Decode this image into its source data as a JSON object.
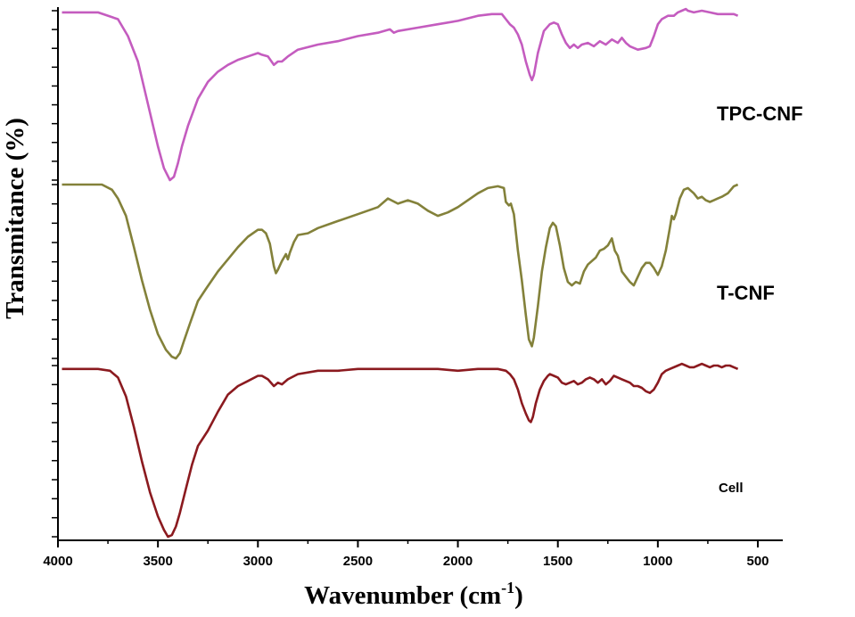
{
  "chart_data": {
    "type": "line",
    "title": "",
    "xlabel": "Wavenumber (cm",
    "xlabel_superscript": "-1",
    "xlabel_close": ")",
    "ylabel": "Transmitance (%)",
    "xlim": [
      4000,
      400
    ],
    "x_reversed": true,
    "xticks": [
      4000,
      3500,
      3000,
      2500,
      2000,
      1500,
      1000,
      500
    ],
    "grid": false,
    "series": [
      {
        "name": "TPC-CNF",
        "color": "#c45cbf",
        "panel": 0,
        "points": [
          [
            3980,
            0.01
          ],
          [
            3800,
            0.01
          ],
          [
            3700,
            0.05
          ],
          [
            3650,
            0.15
          ],
          [
            3600,
            0.3
          ],
          [
            3550,
            0.55
          ],
          [
            3500,
            0.8
          ],
          [
            3470,
            0.93
          ],
          [
            3440,
            1.0
          ],
          [
            3420,
            0.98
          ],
          [
            3400,
            0.9
          ],
          [
            3380,
            0.8
          ],
          [
            3350,
            0.68
          ],
          [
            3300,
            0.52
          ],
          [
            3250,
            0.42
          ],
          [
            3200,
            0.36
          ],
          [
            3150,
            0.32
          ],
          [
            3100,
            0.29
          ],
          [
            3050,
            0.27
          ],
          [
            3000,
            0.25
          ],
          [
            2980,
            0.26
          ],
          [
            2950,
            0.27
          ],
          [
            2920,
            0.32
          ],
          [
            2900,
            0.3
          ],
          [
            2880,
            0.3
          ],
          [
            2860,
            0.28
          ],
          [
            2850,
            0.27
          ],
          [
            2800,
            0.23
          ],
          [
            2700,
            0.2
          ],
          [
            2600,
            0.18
          ],
          [
            2500,
            0.15
          ],
          [
            2400,
            0.13
          ],
          [
            2340,
            0.11
          ],
          [
            2320,
            0.13
          ],
          [
            2300,
            0.12
          ],
          [
            2200,
            0.1
          ],
          [
            2100,
            0.08
          ],
          [
            2000,
            0.06
          ],
          [
            1900,
            0.03
          ],
          [
            1830,
            0.02
          ],
          [
            1780,
            0.02
          ],
          [
            1760,
            0.05
          ],
          [
            1740,
            0.08
          ],
          [
            1720,
            0.1
          ],
          [
            1700,
            0.14
          ],
          [
            1680,
            0.2
          ],
          [
            1660,
            0.3
          ],
          [
            1640,
            0.38
          ],
          [
            1630,
            0.41
          ],
          [
            1620,
            0.38
          ],
          [
            1600,
            0.25
          ],
          [
            1570,
            0.12
          ],
          [
            1540,
            0.08
          ],
          [
            1520,
            0.07
          ],
          [
            1500,
            0.08
          ],
          [
            1480,
            0.14
          ],
          [
            1460,
            0.19
          ],
          [
            1440,
            0.22
          ],
          [
            1420,
            0.2
          ],
          [
            1400,
            0.22
          ],
          [
            1380,
            0.2
          ],
          [
            1350,
            0.19
          ],
          [
            1320,
            0.21
          ],
          [
            1290,
            0.18
          ],
          [
            1260,
            0.2
          ],
          [
            1230,
            0.17
          ],
          [
            1200,
            0.19
          ],
          [
            1180,
            0.16
          ],
          [
            1160,
            0.19
          ],
          [
            1140,
            0.21
          ],
          [
            1120,
            0.22
          ],
          [
            1100,
            0.23
          ],
          [
            1060,
            0.22
          ],
          [
            1040,
            0.21
          ],
          [
            1020,
            0.15
          ],
          [
            1000,
            0.08
          ],
          [
            980,
            0.05
          ],
          [
            950,
            0.03
          ],
          [
            920,
            0.03
          ],
          [
            900,
            0.01
          ],
          [
            880,
            0.0
          ],
          [
            860,
            -0.01
          ],
          [
            850,
            0.0
          ],
          [
            820,
            0.01
          ],
          [
            780,
            0.0
          ],
          [
            740,
            0.01
          ],
          [
            700,
            0.02
          ],
          [
            660,
            0.02
          ],
          [
            620,
            0.02
          ],
          [
            600,
            0.03
          ]
        ]
      },
      {
        "name": "T-CNF",
        "color": "#83813a",
        "panel": 1,
        "points": [
          [
            3980,
            0.0
          ],
          [
            3780,
            0.0
          ],
          [
            3730,
            0.03
          ],
          [
            3700,
            0.08
          ],
          [
            3660,
            0.18
          ],
          [
            3620,
            0.36
          ],
          [
            3580,
            0.55
          ],
          [
            3540,
            0.72
          ],
          [
            3500,
            0.86
          ],
          [
            3460,
            0.95
          ],
          [
            3430,
            0.99
          ],
          [
            3410,
            1.0
          ],
          [
            3390,
            0.97
          ],
          [
            3370,
            0.9
          ],
          [
            3340,
            0.8
          ],
          [
            3300,
            0.67
          ],
          [
            3260,
            0.6
          ],
          [
            3200,
            0.5
          ],
          [
            3150,
            0.43
          ],
          [
            3100,
            0.36
          ],
          [
            3050,
            0.3
          ],
          [
            3000,
            0.26
          ],
          [
            2980,
            0.26
          ],
          [
            2960,
            0.28
          ],
          [
            2940,
            0.34
          ],
          [
            2920,
            0.47
          ],
          [
            2910,
            0.51
          ],
          [
            2900,
            0.49
          ],
          [
            2880,
            0.44
          ],
          [
            2860,
            0.4
          ],
          [
            2850,
            0.43
          ],
          [
            2840,
            0.39
          ],
          [
            2820,
            0.33
          ],
          [
            2800,
            0.29
          ],
          [
            2750,
            0.28
          ],
          [
            2700,
            0.25
          ],
          [
            2600,
            0.21
          ],
          [
            2500,
            0.17
          ],
          [
            2400,
            0.13
          ],
          [
            2350,
            0.08
          ],
          [
            2300,
            0.11
          ],
          [
            2250,
            0.09
          ],
          [
            2200,
            0.11
          ],
          [
            2150,
            0.15
          ],
          [
            2100,
            0.18
          ],
          [
            2050,
            0.16
          ],
          [
            2000,
            0.13
          ],
          [
            1950,
            0.09
          ],
          [
            1900,
            0.05
          ],
          [
            1850,
            0.02
          ],
          [
            1800,
            0.01
          ],
          [
            1770,
            0.02
          ],
          [
            1760,
            0.1
          ],
          [
            1745,
            0.12
          ],
          [
            1735,
            0.11
          ],
          [
            1720,
            0.17
          ],
          [
            1700,
            0.38
          ],
          [
            1680,
            0.55
          ],
          [
            1660,
            0.75
          ],
          [
            1645,
            0.89
          ],
          [
            1630,
            0.93
          ],
          [
            1620,
            0.88
          ],
          [
            1600,
            0.7
          ],
          [
            1580,
            0.5
          ],
          [
            1560,
            0.36
          ],
          [
            1540,
            0.25
          ],
          [
            1525,
            0.22
          ],
          [
            1510,
            0.24
          ],
          [
            1490,
            0.35
          ],
          [
            1470,
            0.48
          ],
          [
            1450,
            0.56
          ],
          [
            1430,
            0.58
          ],
          [
            1410,
            0.56
          ],
          [
            1390,
            0.57
          ],
          [
            1370,
            0.5
          ],
          [
            1350,
            0.46
          ],
          [
            1330,
            0.44
          ],
          [
            1310,
            0.42
          ],
          [
            1290,
            0.38
          ],
          [
            1270,
            0.37
          ],
          [
            1250,
            0.35
          ],
          [
            1230,
            0.31
          ],
          [
            1215,
            0.38
          ],
          [
            1200,
            0.41
          ],
          [
            1180,
            0.5
          ],
          [
            1160,
            0.53
          ],
          [
            1140,
            0.56
          ],
          [
            1120,
            0.58
          ],
          [
            1100,
            0.53
          ],
          [
            1080,
            0.48
          ],
          [
            1060,
            0.45
          ],
          [
            1040,
            0.45
          ],
          [
            1020,
            0.48
          ],
          [
            1000,
            0.52
          ],
          [
            980,
            0.47
          ],
          [
            960,
            0.38
          ],
          [
            940,
            0.25
          ],
          [
            930,
            0.18
          ],
          [
            920,
            0.2
          ],
          [
            910,
            0.17
          ],
          [
            890,
            0.08
          ],
          [
            870,
            0.03
          ],
          [
            850,
            0.02
          ],
          [
            820,
            0.05
          ],
          [
            800,
            0.08
          ],
          [
            780,
            0.07
          ],
          [
            760,
            0.09
          ],
          [
            740,
            0.1
          ],
          [
            720,
            0.09
          ],
          [
            700,
            0.08
          ],
          [
            680,
            0.07
          ],
          [
            650,
            0.05
          ],
          [
            620,
            0.01
          ],
          [
            600,
            0.0
          ]
        ]
      },
      {
        "name": "Cell",
        "color": "#8b1a1f",
        "panel": 2,
        "points": [
          [
            3980,
            0.02
          ],
          [
            3800,
            0.02
          ],
          [
            3740,
            0.03
          ],
          [
            3700,
            0.07
          ],
          [
            3660,
            0.18
          ],
          [
            3620,
            0.36
          ],
          [
            3580,
            0.56
          ],
          [
            3540,
            0.74
          ],
          [
            3500,
            0.88
          ],
          [
            3470,
            0.96
          ],
          [
            3450,
            1.0
          ],
          [
            3430,
            0.99
          ],
          [
            3410,
            0.94
          ],
          [
            3390,
            0.86
          ],
          [
            3360,
            0.72
          ],
          [
            3330,
            0.58
          ],
          [
            3300,
            0.47
          ],
          [
            3250,
            0.38
          ],
          [
            3200,
            0.27
          ],
          [
            3150,
            0.17
          ],
          [
            3100,
            0.12
          ],
          [
            3050,
            0.09
          ],
          [
            3000,
            0.06
          ],
          [
            2980,
            0.06
          ],
          [
            2950,
            0.08
          ],
          [
            2920,
            0.12
          ],
          [
            2910,
            0.11
          ],
          [
            2900,
            0.1
          ],
          [
            2880,
            0.11
          ],
          [
            2860,
            0.09
          ],
          [
            2850,
            0.08
          ],
          [
            2800,
            0.05
          ],
          [
            2700,
            0.03
          ],
          [
            2600,
            0.03
          ],
          [
            2500,
            0.02
          ],
          [
            2400,
            0.02
          ],
          [
            2300,
            0.02
          ],
          [
            2200,
            0.02
          ],
          [
            2100,
            0.02
          ],
          [
            2000,
            0.03
          ],
          [
            1900,
            0.02
          ],
          [
            1800,
            0.02
          ],
          [
            1760,
            0.03
          ],
          [
            1740,
            0.05
          ],
          [
            1720,
            0.08
          ],
          [
            1700,
            0.14
          ],
          [
            1680,
            0.22
          ],
          [
            1660,
            0.28
          ],
          [
            1645,
            0.32
          ],
          [
            1635,
            0.33
          ],
          [
            1625,
            0.3
          ],
          [
            1610,
            0.22
          ],
          [
            1590,
            0.14
          ],
          [
            1570,
            0.09
          ],
          [
            1550,
            0.06
          ],
          [
            1540,
            0.05
          ],
          [
            1520,
            0.06
          ],
          [
            1500,
            0.07
          ],
          [
            1480,
            0.1
          ],
          [
            1460,
            0.11
          ],
          [
            1440,
            0.1
          ],
          [
            1420,
            0.09
          ],
          [
            1400,
            0.11
          ],
          [
            1380,
            0.1
          ],
          [
            1360,
            0.08
          ],
          [
            1340,
            0.07
          ],
          [
            1320,
            0.08
          ],
          [
            1300,
            0.1
          ],
          [
            1280,
            0.08
          ],
          [
            1260,
            0.11
          ],
          [
            1240,
            0.09
          ],
          [
            1220,
            0.06
          ],
          [
            1200,
            0.07
          ],
          [
            1180,
            0.08
          ],
          [
            1160,
            0.09
          ],
          [
            1140,
            0.1
          ],
          [
            1120,
            0.12
          ],
          [
            1100,
            0.12
          ],
          [
            1080,
            0.13
          ],
          [
            1060,
            0.15
          ],
          [
            1040,
            0.16
          ],
          [
            1020,
            0.14
          ],
          [
            1000,
            0.1
          ],
          [
            980,
            0.05
          ],
          [
            960,
            0.03
          ],
          [
            940,
            0.02
          ],
          [
            900,
            0.0
          ],
          [
            880,
            -0.01
          ],
          [
            860,
            0.0
          ],
          [
            840,
            0.01
          ],
          [
            820,
            0.01
          ],
          [
            800,
            0.0
          ],
          [
            780,
            -0.01
          ],
          [
            760,
            0.0
          ],
          [
            740,
            0.01
          ],
          [
            720,
            0.0
          ],
          [
            700,
            0.0
          ],
          [
            680,
            0.01
          ],
          [
            660,
            0.0
          ],
          [
            640,
            0.0
          ],
          [
            620,
            0.01
          ],
          [
            600,
            0.02
          ]
        ]
      }
    ],
    "series_labels": [
      "TPC-CNF",
      "T-CNF",
      "Cell"
    ]
  }
}
